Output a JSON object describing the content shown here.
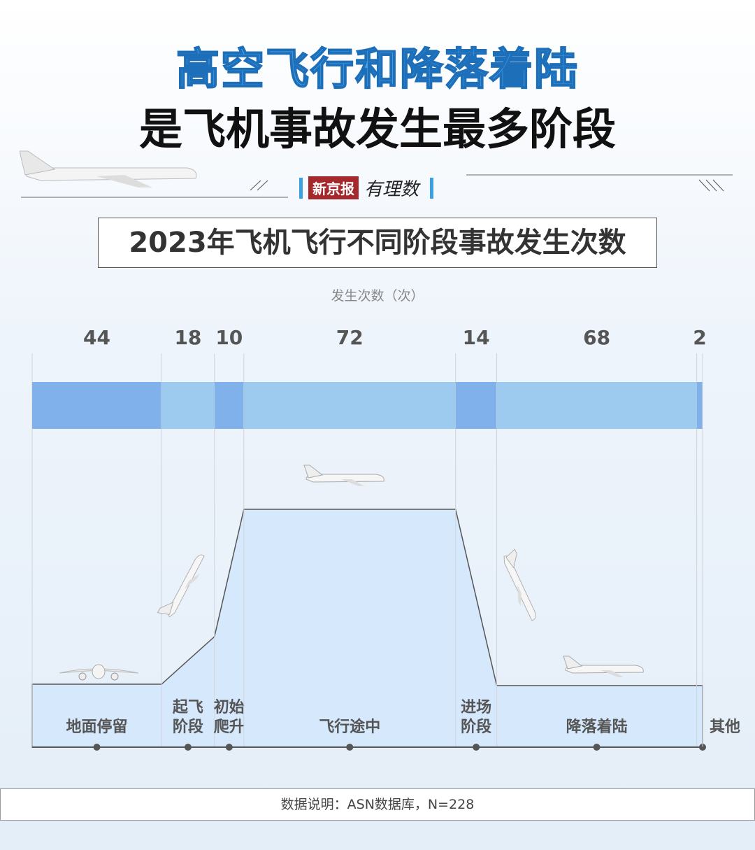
{
  "title_line1": "高空飞行和降落着陆",
  "title_line2": "是飞机事故发生最多阶段",
  "brand": {
    "name": "新京报",
    "column": "有理数"
  },
  "chart_data": {
    "type": "bar",
    "title": "2023年飞机飞行不同阶段事故发生次数",
    "ylabel": "发生次数（次）",
    "categories": [
      [
        "地面停留"
      ],
      [
        "起飞",
        "阶段"
      ],
      [
        "初始",
        "爬升"
      ],
      [
        "飞行途中"
      ],
      [
        "进场",
        "阶段"
      ],
      [
        "降落着陆"
      ],
      [
        "其他"
      ]
    ],
    "values": [
      44,
      18,
      10,
      72,
      14,
      68,
      2
    ],
    "colors": {
      "dark": "#80b1ea",
      "light": "#9ccbef",
      "profile_fill": "#d6e8fb",
      "profile_stroke": "#555555"
    }
  },
  "note": "数据说明：ASN数据库，N=228"
}
